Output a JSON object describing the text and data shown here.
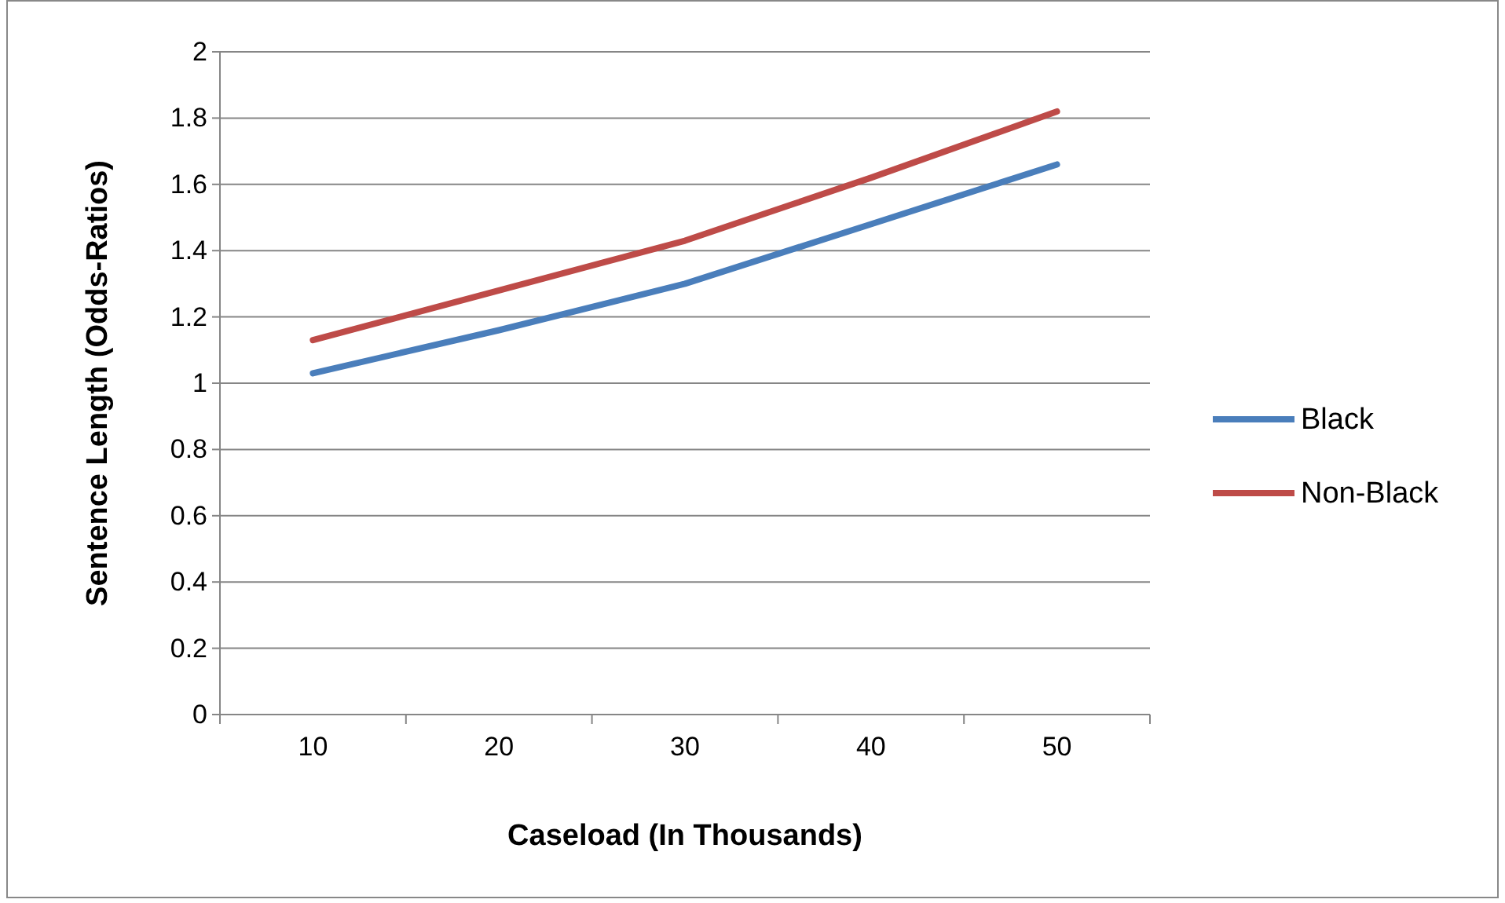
{
  "chart_data": {
    "type": "line",
    "xlabel": "Caseload (In Thousands)",
    "ylabel": "Sentence Length (Odds-Ratios)",
    "categories": [
      "10",
      "20",
      "30",
      "40",
      "50"
    ],
    "series": [
      {
        "name": "Black",
        "color": "#4a7ebb",
        "values": [
          1.03,
          1.16,
          1.3,
          1.48,
          1.66
        ]
      },
      {
        "name": "Non-Black",
        "color": "#be4b48",
        "values": [
          1.13,
          1.28,
          1.43,
          1.62,
          1.82
        ]
      }
    ],
    "ylim": [
      0,
      2
    ],
    "yticks": [
      0,
      0.2,
      0.4,
      0.6,
      0.8,
      1,
      1.2,
      1.4,
      1.6,
      1.8,
      2
    ],
    "grid": "y",
    "legend": "right",
    "marker": "none",
    "line_style": "solid"
  }
}
